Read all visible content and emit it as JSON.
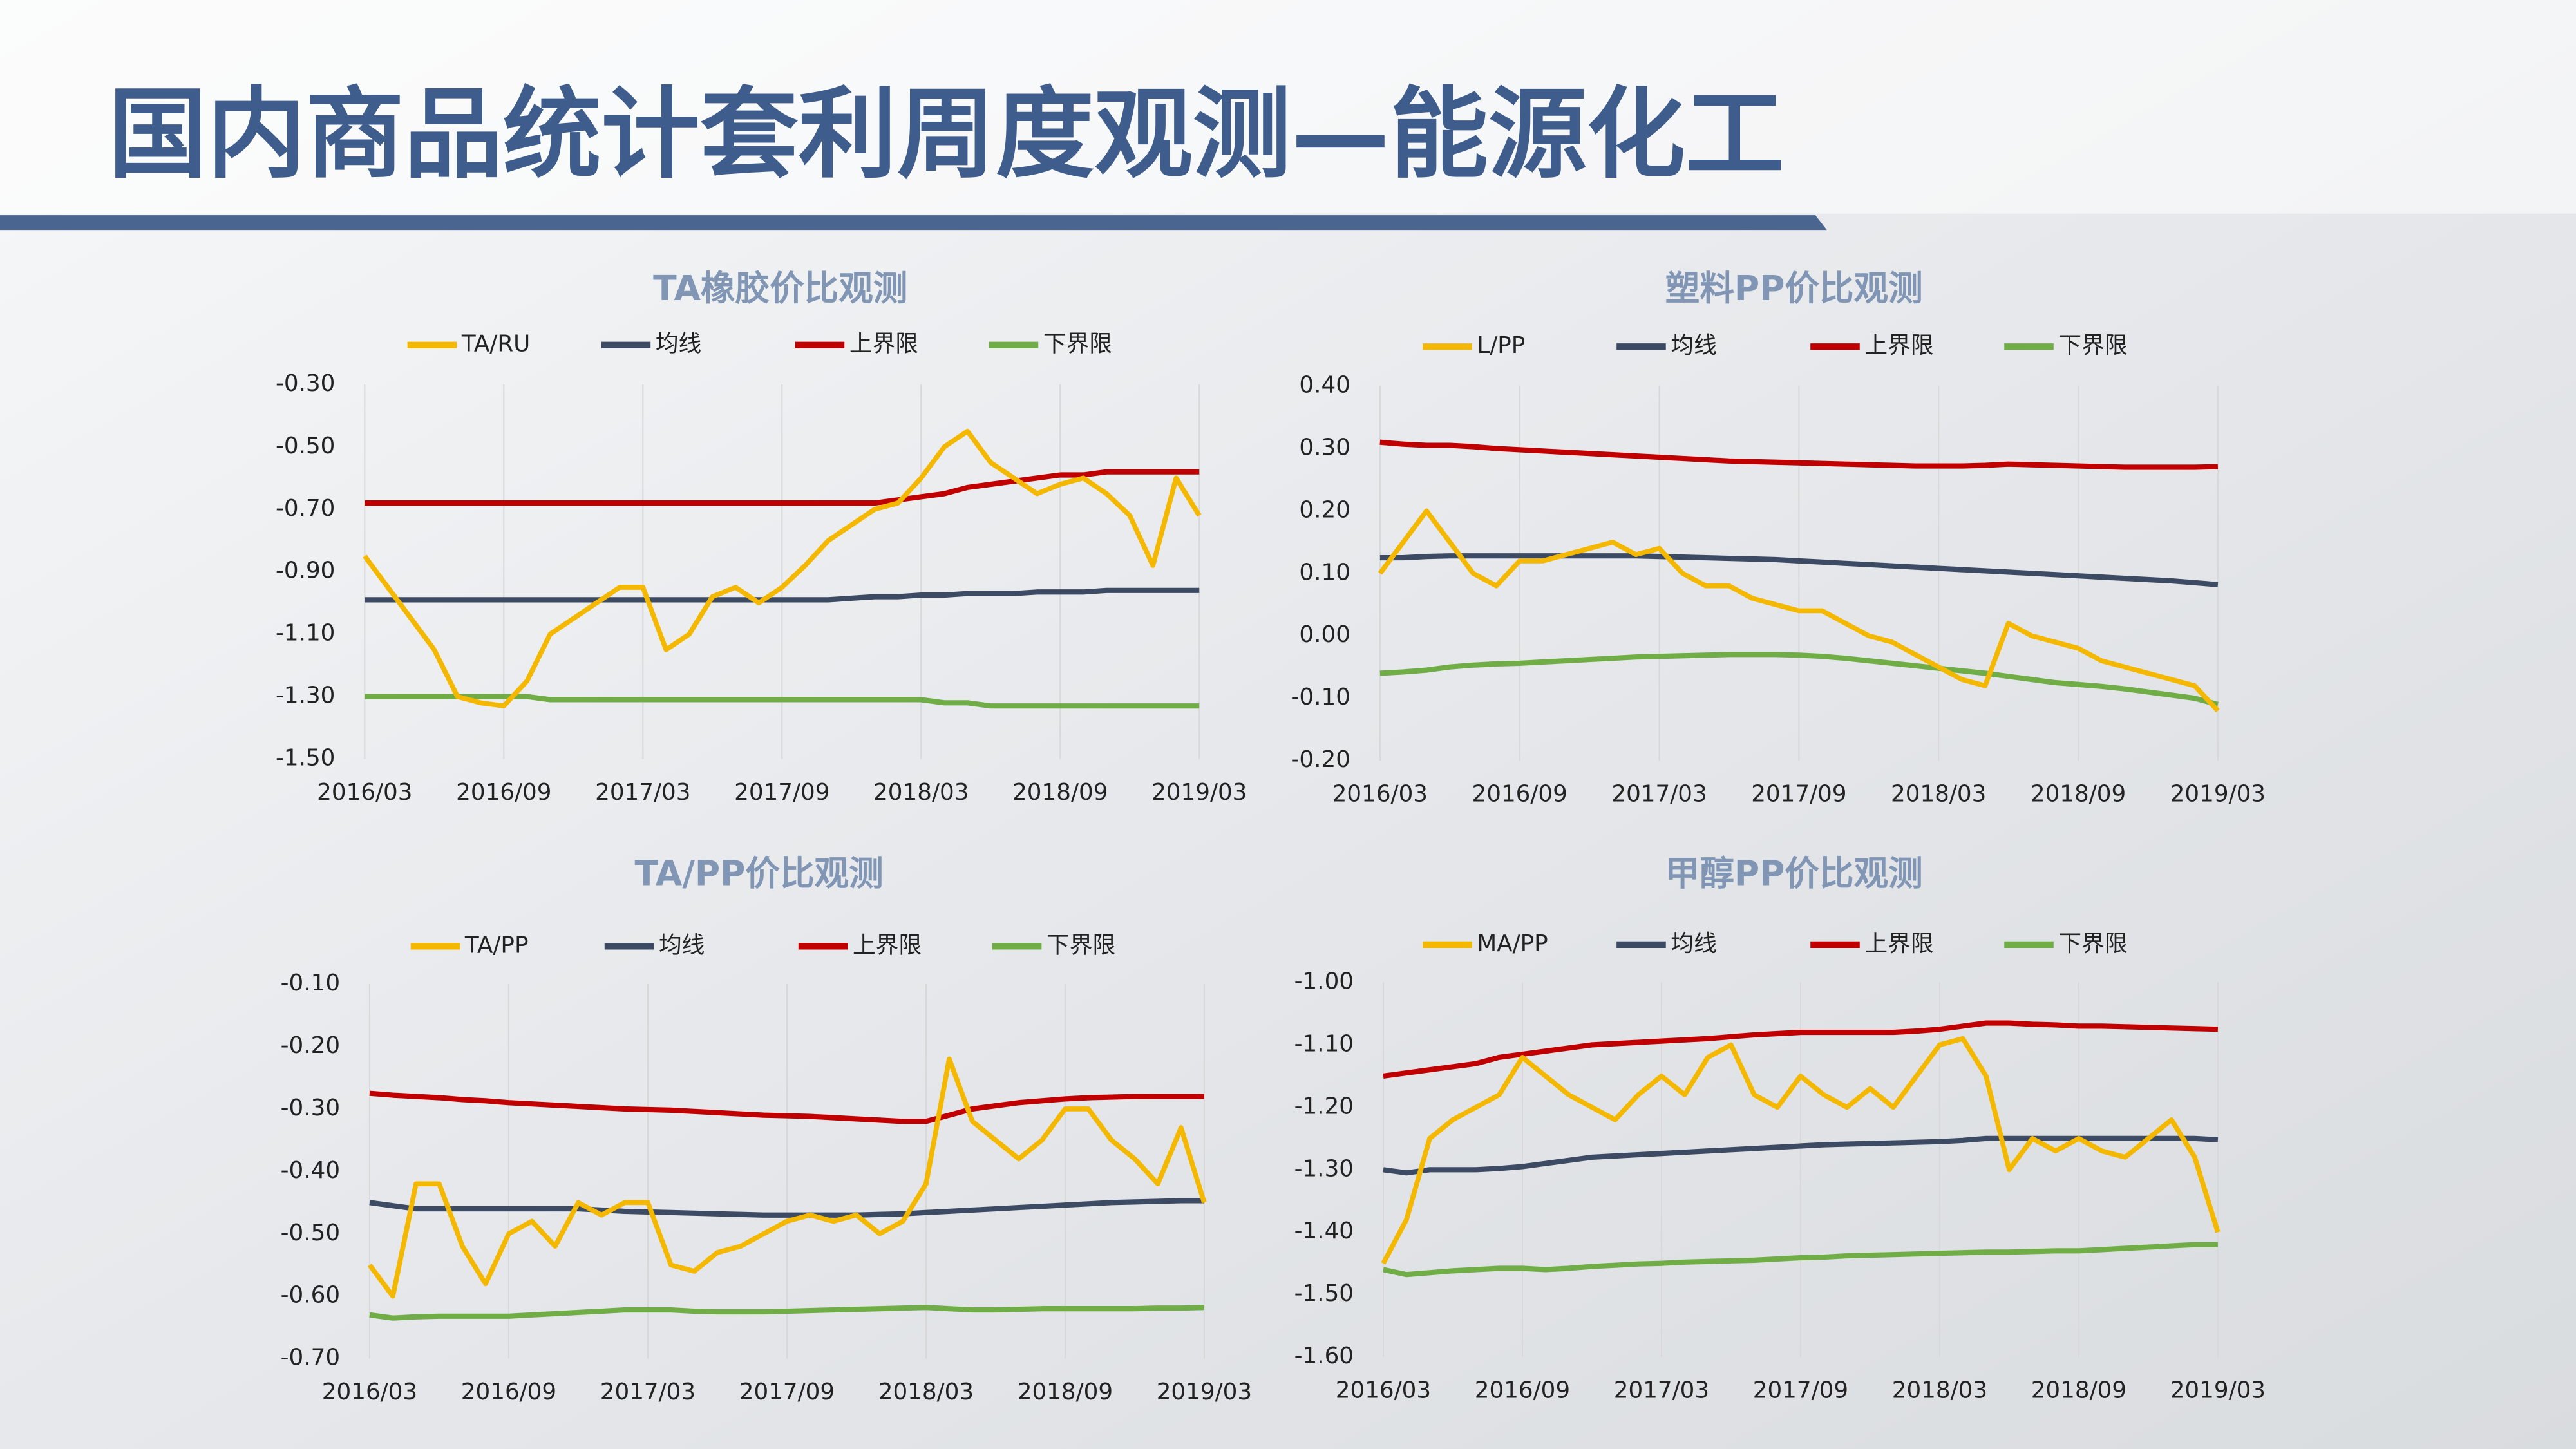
{
  "title": "国内商品统计套利周度观测—能源化工",
  "chart_data": [
    {
      "type": "line",
      "title": "TA橡胶价比观测",
      "legend": "top",
      "categories": [
        "2016/03",
        null,
        null,
        null,
        null,
        null,
        "2016/09",
        null,
        null,
        null,
        null,
        null,
        "2017/03",
        null,
        null,
        null,
        null,
        null,
        "2017/09",
        null,
        null,
        null,
        null,
        null,
        "2018/03",
        null,
        null,
        null,
        null,
        null,
        "2018/09",
        null,
        null,
        null,
        null,
        null,
        "2019/03"
      ],
      "ylim": [
        -1.5,
        -0.3
      ],
      "yticks": [
        {
          "value": -0.3,
          "label": "-0.30"
        },
        {
          "value": -0.5,
          "label": "-0.50"
        },
        {
          "value": -0.7,
          "label": "-0.70"
        },
        {
          "value": -0.9,
          "label": "-0.90"
        },
        {
          "value": -1.1,
          "label": "-1.10"
        },
        {
          "value": -1.3,
          "label": "-1.30"
        },
        {
          "value": -1.5,
          "label": "-1.50"
        }
      ],
      "series": [
        {
          "name": "TA/RU",
          "color": "#f5b800",
          "values": [
            -0.85,
            -0.95,
            -1.05,
            -1.15,
            -1.3,
            -1.32,
            -1.33,
            -1.25,
            -1.1,
            -1.05,
            -1.0,
            -0.95,
            -0.95,
            -1.15,
            -1.1,
            -0.98,
            -0.95,
            -1.0,
            -0.95,
            -0.88,
            -0.8,
            -0.75,
            -0.7,
            -0.68,
            -0.6,
            -0.5,
            -0.45,
            -0.55,
            -0.6,
            -0.65,
            -0.62,
            -0.6,
            -0.65,
            -0.72,
            -0.88,
            -0.6,
            -0.72
          ]
        },
        {
          "name": "均线",
          "color": "#3c4a63",
          "values": [
            -0.99,
            -0.99,
            -0.99,
            -0.99,
            -0.99,
            -0.99,
            -0.99,
            -0.99,
            -0.99,
            -0.99,
            -0.99,
            -0.99,
            -0.99,
            -0.99,
            -0.99,
            -0.99,
            -0.99,
            -0.99,
            -0.99,
            -0.99,
            -0.99,
            -0.985,
            -0.98,
            -0.98,
            -0.975,
            -0.975,
            -0.97,
            -0.97,
            -0.97,
            -0.965,
            -0.965,
            -0.965,
            -0.96,
            -0.96,
            -0.96,
            -0.96,
            -0.96
          ]
        },
        {
          "name": "上界限",
          "color": "#c00000",
          "values": [
            -0.68,
            -0.68,
            -0.68,
            -0.68,
            -0.68,
            -0.68,
            -0.68,
            -0.68,
            -0.68,
            -0.68,
            -0.68,
            -0.68,
            -0.68,
            -0.68,
            -0.68,
            -0.68,
            -0.68,
            -0.68,
            -0.68,
            -0.68,
            -0.68,
            -0.68,
            -0.68,
            -0.67,
            -0.66,
            -0.65,
            -0.63,
            -0.62,
            -0.61,
            -0.6,
            -0.59,
            -0.59,
            -0.58,
            -0.58,
            -0.58,
            -0.58,
            -0.58
          ]
        },
        {
          "name": "下界限",
          "color": "#70ad47",
          "values": [
            -1.3,
            -1.3,
            -1.3,
            -1.3,
            -1.3,
            -1.3,
            -1.3,
            -1.3,
            -1.31,
            -1.31,
            -1.31,
            -1.31,
            -1.31,
            -1.31,
            -1.31,
            -1.31,
            -1.31,
            -1.31,
            -1.31,
            -1.31,
            -1.31,
            -1.31,
            -1.31,
            -1.31,
            -1.31,
            -1.32,
            -1.32,
            -1.33,
            -1.33,
            -1.33,
            -1.33,
            -1.33,
            -1.33,
            -1.33,
            -1.33,
            -1.33,
            -1.33
          ]
        }
      ]
    },
    {
      "type": "line",
      "title": "塑料PP价比观测",
      "legend": "top",
      "categories": [
        "2016/03",
        null,
        null,
        null,
        null,
        null,
        "2016/09",
        null,
        null,
        null,
        null,
        null,
        "2017/03",
        null,
        null,
        null,
        null,
        null,
        "2017/09",
        null,
        null,
        null,
        null,
        null,
        "2018/03",
        null,
        null,
        null,
        null,
        null,
        "2018/09",
        null,
        null,
        null,
        null,
        null,
        "2019/03"
      ],
      "ylim": [
        -0.2,
        0.4
      ],
      "yticks": [
        {
          "value": 0.4,
          "label": "0.40"
        },
        {
          "value": 0.3,
          "label": "0.30"
        },
        {
          "value": 0.2,
          "label": "0.20"
        },
        {
          "value": 0.1,
          "label": "0.10"
        },
        {
          "value": 0,
          "label": "0.00"
        },
        {
          "value": -0.1,
          "label": "-0.10"
        },
        {
          "value": -0.2,
          "label": "-0.20"
        }
      ],
      "series": [
        {
          "name": "L/PP",
          "color": "#f5b800",
          "values": [
            0.1,
            0.15,
            0.2,
            0.15,
            0.1,
            0.08,
            0.12,
            0.12,
            0.13,
            0.14,
            0.15,
            0.13,
            0.14,
            0.1,
            0.08,
            0.08,
            0.06,
            0.05,
            0.04,
            0.04,
            0.02,
            0.0,
            -0.01,
            -0.03,
            -0.05,
            -0.07,
            -0.08,
            0.02,
            0.0,
            -0.01,
            -0.02,
            -0.04,
            -0.05,
            -0.06,
            -0.07,
            -0.08,
            -0.12
          ]
        },
        {
          "name": "均线",
          "color": "#3c4a63",
          "values": [
            0.125,
            0.125,
            0.127,
            0.128,
            0.128,
            0.128,
            0.128,
            0.128,
            0.128,
            0.128,
            0.128,
            0.128,
            0.127,
            0.126,
            0.125,
            0.124,
            0.123,
            0.122,
            0.12,
            0.118,
            0.116,
            0.114,
            0.112,
            0.11,
            0.108,
            0.106,
            0.104,
            0.102,
            0.1,
            0.098,
            0.096,
            0.094,
            0.092,
            0.09,
            0.088,
            0.085,
            0.082
          ]
        },
        {
          "name": "上界限",
          "color": "#c00000",
          "values": [
            0.31,
            0.307,
            0.305,
            0.305,
            0.303,
            0.3,
            0.298,
            0.296,
            0.294,
            0.292,
            0.29,
            0.288,
            0.286,
            0.284,
            0.282,
            0.28,
            0.279,
            0.278,
            0.277,
            0.276,
            0.275,
            0.274,
            0.273,
            0.272,
            0.272,
            0.272,
            0.273,
            0.275,
            0.274,
            0.273,
            0.272,
            0.271,
            0.27,
            0.27,
            0.27,
            0.27,
            0.271
          ]
        },
        {
          "name": "下界限",
          "color": "#70ad47",
          "values": [
            -0.06,
            -0.058,
            -0.055,
            -0.05,
            -0.047,
            -0.045,
            -0.044,
            -0.042,
            -0.04,
            -0.038,
            -0.036,
            -0.034,
            -0.033,
            -0.032,
            -0.031,
            -0.03,
            -0.03,
            -0.03,
            -0.031,
            -0.033,
            -0.036,
            -0.04,
            -0.044,
            -0.048,
            -0.052,
            -0.056,
            -0.06,
            -0.065,
            -0.07,
            -0.075,
            -0.078,
            -0.081,
            -0.085,
            -0.09,
            -0.095,
            -0.1,
            -0.11
          ]
        }
      ]
    },
    {
      "type": "line",
      "title": "TA/PP价比观测",
      "legend": "top",
      "categories": [
        "2016/03",
        null,
        null,
        null,
        null,
        null,
        "2016/09",
        null,
        null,
        null,
        null,
        null,
        "2017/03",
        null,
        null,
        null,
        null,
        null,
        "2017/09",
        null,
        null,
        null,
        null,
        null,
        "2018/03",
        null,
        null,
        null,
        null,
        null,
        "2018/09",
        null,
        null,
        null,
        null,
        null,
        "2019/03"
      ],
      "ylim": [
        -0.7,
        -0.1
      ],
      "yticks": [
        {
          "value": -0.1,
          "label": "-0.10"
        },
        {
          "value": -0.2,
          "label": "-0.20"
        },
        {
          "value": -0.3,
          "label": "-0.30"
        },
        {
          "value": -0.4,
          "label": "-0.40"
        },
        {
          "value": -0.5,
          "label": "-0.50"
        },
        {
          "value": -0.6,
          "label": "-0.60"
        },
        {
          "value": -0.7,
          "label": "-0.70"
        }
      ],
      "series": [
        {
          "name": "TA/PP",
          "color": "#f5b800",
          "values": [
            -0.55,
            -0.6,
            -0.42,
            -0.42,
            -0.52,
            -0.58,
            -0.5,
            -0.48,
            -0.52,
            -0.45,
            -0.47,
            -0.45,
            -0.45,
            -0.55,
            -0.56,
            -0.53,
            -0.52,
            -0.5,
            -0.48,
            -0.47,
            -0.48,
            -0.47,
            -0.5,
            -0.48,
            -0.42,
            -0.22,
            -0.32,
            -0.35,
            -0.38,
            -0.35,
            -0.3,
            -0.3,
            -0.35,
            -0.38,
            -0.42,
            -0.33,
            -0.45
          ]
        },
        {
          "name": "均线",
          "color": "#3c4a63",
          "values": [
            -0.45,
            -0.455,
            -0.46,
            -0.46,
            -0.46,
            -0.46,
            -0.46,
            -0.46,
            -0.46,
            -0.46,
            -0.462,
            -0.464,
            -0.465,
            -0.466,
            -0.467,
            -0.468,
            -0.469,
            -0.47,
            -0.47,
            -0.47,
            -0.47,
            -0.47,
            -0.469,
            -0.468,
            -0.466,
            -0.464,
            -0.462,
            -0.46,
            -0.458,
            -0.456,
            -0.454,
            -0.452,
            -0.45,
            -0.449,
            -0.448,
            -0.447,
            -0.447
          ]
        },
        {
          "name": "上界限",
          "color": "#c00000",
          "values": [
            -0.275,
            -0.278,
            -0.28,
            -0.282,
            -0.285,
            -0.287,
            -0.29,
            -0.292,
            -0.294,
            -0.296,
            -0.298,
            -0.3,
            -0.301,
            -0.302,
            -0.304,
            -0.306,
            -0.308,
            -0.31,
            -0.311,
            -0.312,
            -0.314,
            -0.316,
            -0.318,
            -0.32,
            -0.32,
            -0.31,
            -0.3,
            -0.295,
            -0.29,
            -0.287,
            -0.284,
            -0.282,
            -0.281,
            -0.28,
            -0.28,
            -0.28,
            -0.28
          ]
        },
        {
          "name": "下界限",
          "color": "#70ad47",
          "values": [
            -0.63,
            -0.635,
            -0.633,
            -0.632,
            -0.632,
            -0.632,
            -0.632,
            -0.63,
            -0.628,
            -0.626,
            -0.624,
            -0.622,
            -0.622,
            -0.622,
            -0.624,
            -0.625,
            -0.625,
            -0.625,
            -0.624,
            -0.623,
            -0.622,
            -0.621,
            -0.62,
            -0.619,
            -0.618,
            -0.62,
            -0.622,
            -0.622,
            -0.621,
            -0.62,
            -0.62,
            -0.62,
            -0.62,
            -0.62,
            -0.619,
            -0.619,
            -0.618
          ]
        }
      ]
    },
    {
      "type": "line",
      "title": "甲醇PP价比观测",
      "legend": "top",
      "categories": [
        "2016/03",
        null,
        null,
        null,
        null,
        null,
        "2016/09",
        null,
        null,
        null,
        null,
        null,
        "2017/03",
        null,
        null,
        null,
        null,
        null,
        "2017/09",
        null,
        null,
        null,
        null,
        null,
        "2018/03",
        null,
        null,
        null,
        null,
        null,
        "2018/09",
        null,
        null,
        null,
        null,
        null,
        "2019/03"
      ],
      "ylim": [
        -1.6,
        -1.0
      ],
      "yticks": [
        {
          "value": -1.0,
          "label": "-1.00"
        },
        {
          "value": -1.1,
          "label": "-1.10"
        },
        {
          "value": -1.2,
          "label": "-1.20"
        },
        {
          "value": -1.3,
          "label": "-1.30"
        },
        {
          "value": -1.4,
          "label": "-1.40"
        },
        {
          "value": -1.5,
          "label": "-1.50"
        },
        {
          "value": -1.6,
          "label": "-1.60"
        }
      ],
      "series": [
        {
          "name": "MA/PP",
          "color": "#f5b800",
          "values": [
            -1.45,
            -1.38,
            -1.25,
            -1.22,
            -1.2,
            -1.18,
            -1.12,
            -1.15,
            -1.18,
            -1.2,
            -1.22,
            -1.18,
            -1.15,
            -1.18,
            -1.12,
            -1.1,
            -1.18,
            -1.2,
            -1.15,
            -1.18,
            -1.2,
            -1.17,
            -1.2,
            -1.15,
            -1.1,
            -1.09,
            -1.15,
            -1.3,
            -1.25,
            -1.27,
            -1.25,
            -1.27,
            -1.28,
            -1.25,
            -1.22,
            -1.28,
            -1.4
          ]
        },
        {
          "name": "均线",
          "color": "#3c4a63",
          "values": [
            -1.3,
            -1.305,
            -1.3,
            -1.3,
            -1.3,
            -1.298,
            -1.295,
            -1.29,
            -1.285,
            -1.28,
            -1.278,
            -1.276,
            -1.274,
            -1.272,
            -1.27,
            -1.268,
            -1.266,
            -1.264,
            -1.262,
            -1.26,
            -1.259,
            -1.258,
            -1.257,
            -1.256,
            -1.255,
            -1.253,
            -1.25,
            -1.25,
            -1.25,
            -1.25,
            -1.25,
            -1.25,
            -1.25,
            -1.25,
            -1.25,
            -1.25,
            -1.252
          ]
        },
        {
          "name": "上界限",
          "color": "#c00000",
          "values": [
            -1.15,
            -1.145,
            -1.14,
            -1.135,
            -1.13,
            -1.12,
            -1.115,
            -1.11,
            -1.105,
            -1.1,
            -1.098,
            -1.096,
            -1.094,
            -1.092,
            -1.09,
            -1.087,
            -1.084,
            -1.082,
            -1.08,
            -1.08,
            -1.08,
            -1.08,
            -1.08,
            -1.078,
            -1.075,
            -1.07,
            -1.065,
            -1.065,
            -1.067,
            -1.068,
            -1.07,
            -1.07,
            -1.071,
            -1.072,
            -1.073,
            -1.074,
            -1.075
          ]
        },
        {
          "name": "下界限",
          "color": "#70ad47",
          "values": [
            -1.46,
            -1.468,
            -1.465,
            -1.462,
            -1.46,
            -1.458,
            -1.458,
            -1.46,
            -1.458,
            -1.455,
            -1.453,
            -1.451,
            -1.45,
            -1.448,
            -1.447,
            -1.446,
            -1.445,
            -1.443,
            -1.441,
            -1.44,
            -1.438,
            -1.437,
            -1.436,
            -1.435,
            -1.434,
            -1.433,
            -1.432,
            -1.432,
            -1.431,
            -1.43,
            -1.43,
            -1.428,
            -1.426,
            -1.424,
            -1.422,
            -1.42,
            -1.42
          ]
        }
      ]
    }
  ]
}
